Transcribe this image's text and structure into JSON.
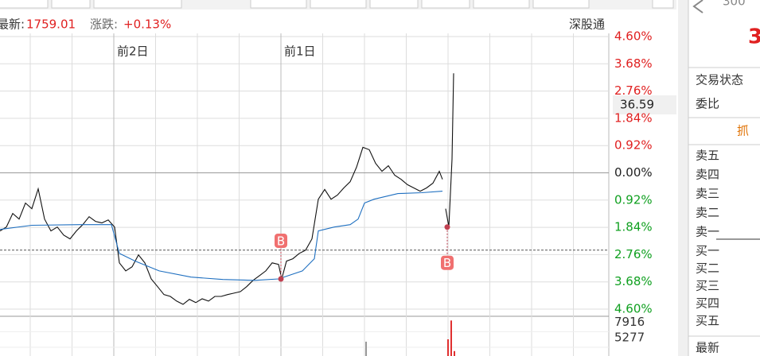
{
  "header": {
    "latest_label": "最新:",
    "latest": "1759.01",
    "change_label": "涨跌:",
    "change": "+0.13%",
    "connect": "深股通"
  },
  "crosshair_label": "36.59",
  "side": {
    "code": "300",
    "price": "3",
    "status": "交易状态",
    "ratio": "委比",
    "tab": "抓",
    "sell": [
      "卖五",
      "卖四",
      "卖三",
      "卖二",
      "卖一"
    ],
    "buy": [
      "买一",
      "买二",
      "买三",
      "买四",
      "买五"
    ],
    "latest": "最新"
  },
  "chart_data": [
    {
      "type": "line",
      "xlim": [
        0,
        765
      ],
      "ylim": [
        -4.6,
        4.6
      ],
      "xticks": [
        {
          "value": 143,
          "label": "前2日"
        },
        {
          "value": 353,
          "label": "前1日"
        }
      ],
      "yticks": [
        {
          "value": 4.6,
          "label": "4.60%"
        },
        {
          "value": 3.68,
          "label": "3.68%"
        },
        {
          "value": 2.76,
          "label": "2.76%"
        },
        {
          "value": 1.84,
          "label": "1.84%"
        },
        {
          "value": 0.92,
          "label": "0.92%"
        },
        {
          "value": 0,
          "label": "0.00%"
        },
        {
          "value": -0.92,
          "label": "0.92%"
        },
        {
          "value": -1.84,
          "label": "1.84%"
        },
        {
          "value": -2.76,
          "label": "2.76%"
        },
        {
          "value": -3.68,
          "label": "3.68%"
        },
        {
          "value": -4.6,
          "label": "4.60%"
        }
      ],
      "grid": true,
      "reference_line": -2.61,
      "series": [
        {
          "color": "#111111",
          "x": [
            0,
            8,
            16,
            24,
            32,
            40,
            48,
            56,
            64,
            72,
            80,
            88,
            96,
            104,
            112,
            120,
            128,
            136,
            144,
            150,
            158,
            166,
            174,
            182,
            190,
            198,
            206,
            214,
            222,
            230,
            238,
            246,
            254,
            262,
            270,
            278,
            286,
            294,
            302,
            310,
            318,
            326,
            334,
            342,
            350,
            354,
            360,
            368,
            376,
            384,
            392,
            400,
            408,
            416,
            424,
            432,
            440,
            448,
            456,
            464,
            472,
            480,
            488,
            496,
            504,
            512,
            520,
            528,
            536,
            544,
            552,
            556,
            558,
            560,
            564,
            568,
            570
          ],
          "values": [
            -1.96,
            -1.83,
            -1.37,
            -1.56,
            -1.02,
            -1.21,
            -0.54,
            -1.56,
            -1.96,
            -1.83,
            -2.1,
            -2.23,
            -1.96,
            -1.75,
            -1.48,
            -1.64,
            -1.69,
            -1.59,
            -1.83,
            -3.04,
            -3.31,
            -3.17,
            -2.77,
            -3.04,
            -3.58,
            -3.84,
            -4.11,
            -4.17,
            -4.33,
            -4.44,
            -4.27,
            -4.38,
            -4.25,
            -4.33,
            -4.17,
            -4.17,
            -4.11,
            -4.06,
            -4.01,
            -3.84,
            -3.63,
            -3.47,
            -3.31,
            -3.04,
            -3.09,
            -3.58,
            -2.98,
            -2.9,
            -2.72,
            -2.61,
            -2.23,
            -0.89,
            -0.56,
            -0.89,
            -0.75,
            -0.51,
            -0.3,
            0.19,
            0.86,
            0.78,
            0.32,
            0.05,
            0.24,
            -0.08,
            -0.22,
            -0.4,
            -0.51,
            -0.62,
            -0.51,
            -0.35,
            0.05,
            -0.22,
            null,
            -1.21,
            -1.83,
            0.46,
            3.36
          ]
        },
        {
          "color": "#1e6fc0",
          "x": [
            0,
            40,
            100,
            140,
            150,
            170,
            200,
            240,
            280,
            320,
            350,
            380,
            395,
            400,
            420,
            440,
            450,
            458,
            470,
            500,
            530,
            556
          ],
          "values": [
            -1.91,
            -1.77,
            -1.75,
            -1.75,
            -2.72,
            -2.98,
            -3.31,
            -3.52,
            -3.6,
            -3.63,
            -3.58,
            -3.31,
            -2.9,
            -1.96,
            -1.83,
            -1.75,
            -1.56,
            -1.02,
            -0.89,
            -0.7,
            -0.67,
            -0.62
          ]
        }
      ],
      "markers": [
        {
          "x": 353,
          "value": -3.58,
          "label": "B"
        },
        {
          "x": 562,
          "value": -1.83,
          "label": "B"
        }
      ]
    },
    {
      "type": "bar",
      "xlim": [
        0,
        765
      ],
      "ylim": [
        0,
        8650
      ],
      "yticks": [
        7916,
        5277
      ],
      "x": [
        460,
        563,
        567,
        571
      ],
      "values": [
        4600,
        5000,
        8200,
        3000
      ],
      "colors": [
        "#999999",
        "#e03030",
        "#e03030",
        "#e03030"
      ]
    }
  ]
}
